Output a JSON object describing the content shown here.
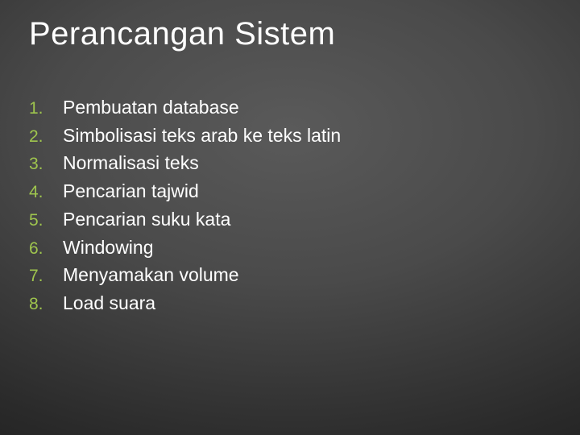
{
  "slide": {
    "title": "Perancangan Sistem",
    "items": [
      {
        "num": "1.",
        "text": "Pembuatan database"
      },
      {
        "num": "2.",
        "text": "Simbolisasi teks arab ke teks latin"
      },
      {
        "num": "3.",
        "text": "Normalisasi teks"
      },
      {
        "num": "4.",
        "text": "Pencarian tajwid"
      },
      {
        "num": "5.",
        "text": "Pencarian suku kata"
      },
      {
        "num": "6.",
        "text": "Windowing"
      },
      {
        "num": "7.",
        "text": "Menyamakan volume"
      },
      {
        "num": "8.",
        "text": "Load suara"
      }
    ],
    "colors": {
      "title": "#ffffff",
      "body_text": "#ffffff",
      "number": "#9fc54e",
      "bg_center": "#5a5a5a",
      "bg_outer": "#1a1a1a"
    },
    "fontsize": {
      "title": 40,
      "body": 23,
      "number": 21
    }
  }
}
